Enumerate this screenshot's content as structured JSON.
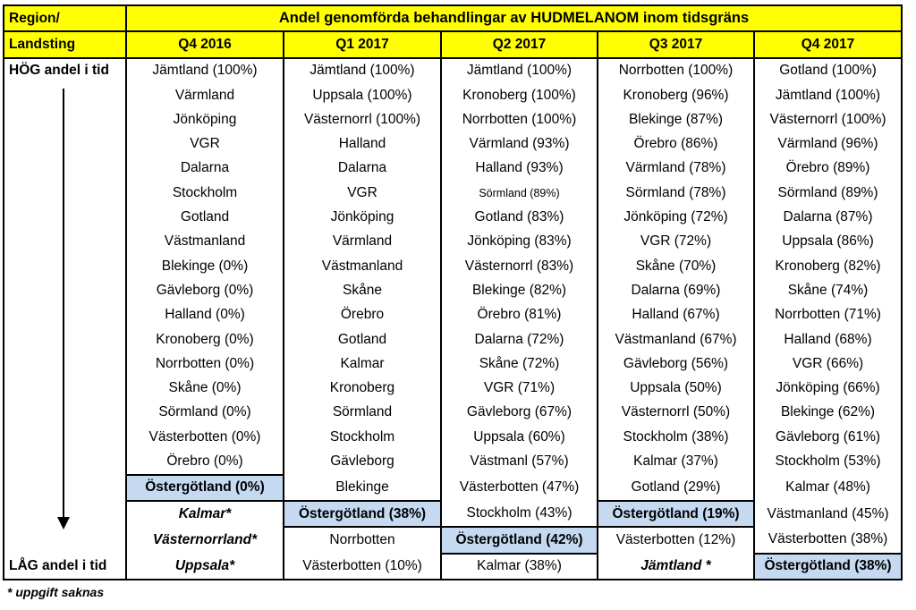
{
  "header": {
    "region_label": "Region/",
    "landsting_label": "Landsting",
    "title": "Andel genomförda behandlingar av HUDMELANOM inom tidsgräns",
    "quarters": [
      "Q4 2016",
      "Q1 2017",
      "Q2 2017",
      "Q3 2017",
      "Q4 2017"
    ]
  },
  "side": {
    "high_label": "HÖG andel i tid",
    "low_label": "LÅG andel i tid"
  },
  "rows": [
    [
      "Jämtland (100%)",
      "Jämtland (100%)",
      "Jämtland (100%)",
      "Norrbotten (100%)",
      "Gotland (100%)"
    ],
    [
      "Värmland",
      "Uppsala (100%)",
      "Kronoberg (100%)",
      "Kronoberg (96%)",
      "Jämtland (100%)"
    ],
    [
      "Jönköping",
      "Västernorrl (100%)",
      "Norrbotten (100%)",
      "Blekinge (87%)",
      "Västernorrl (100%)"
    ],
    [
      "VGR",
      "Halland",
      "Värmland (93%)",
      "Örebro (86%)",
      "Värmland (96%)"
    ],
    [
      "Dalarna",
      "Dalarna",
      "Halland (93%)",
      "Värmland (78%)",
      "Örebro (89%)"
    ],
    [
      "Stockholm",
      "VGR",
      "Sörmland (89%)",
      "Sörmland (78%)",
      "Sörmland (89%)"
    ],
    [
      "Gotland",
      "Jönköping",
      "Gotland (83%)",
      "Jönköping (72%)",
      "Dalarna (87%)"
    ],
    [
      "Västmanland",
      "Värmland",
      "Jönköping (83%)",
      "VGR (72%)",
      "Uppsala (86%)"
    ],
    [
      "Blekinge (0%)",
      "Västmanland",
      "Västernorrl (83%)",
      "Skåne (70%)",
      "Kronoberg (82%)"
    ],
    [
      "Gävleborg (0%)",
      "Skåne",
      "Blekinge (82%)",
      "Dalarna (69%)",
      "Skåne (74%)"
    ],
    [
      "Halland (0%)",
      "Örebro",
      "Örebro (81%)",
      "Halland (67%)",
      "Norrbotten (71%)"
    ],
    [
      "Kronoberg (0%)",
      "Gotland",
      "Dalarna (72%)",
      "Västmanland (67%)",
      "Halland (68%)"
    ],
    [
      "Norrbotten (0%)",
      "Kalmar",
      "Skåne (72%)",
      "Gävleborg (56%)",
      "VGR (66%)"
    ],
    [
      "Skåne (0%)",
      "Kronoberg",
      "VGR (71%)",
      "Uppsala (50%)",
      "Jönköping (66%)"
    ],
    [
      "Sörmland (0%)",
      "Sörmland",
      "Gävleborg (67%)",
      "Västernorrl (50%)",
      "Blekinge (62%)"
    ],
    [
      "Västerbotten (0%)",
      "Stockholm",
      "Uppsala (60%)",
      "Stockholm (38%)",
      "Gävleborg (61%)"
    ],
    [
      "Örebro (0%)",
      "Gävleborg",
      "Västmanl (57%)",
      "Kalmar (37%)",
      "Stockholm (53%)"
    ],
    [
      "Östergötland (0%)",
      "Blekinge",
      "Västerbotten (47%)",
      "Gotland (29%)",
      "Kalmar (48%)"
    ],
    [
      "Kalmar*",
      "Östergötland (38%)",
      "Stockholm (43%)",
      "Östergötland (19%)",
      "Västmanland (45%)"
    ],
    [
      "Västernorrland*",
      "Norrbotten",
      "Östergötland (42%)",
      "Västerbotten (12%)",
      "Västerbotten (38%)"
    ],
    [
      "Uppsala*",
      "Västerbotten (10%)",
      "Kalmar (38%)",
      "Jämtland *",
      "Östergötland (38%)"
    ]
  ],
  "highlight_color": "#c5d9f1",
  "header_color": "#ffff00",
  "footnote": "* uppgift saknas",
  "icons": {
    "arrow": "down-arrow-icon"
  }
}
